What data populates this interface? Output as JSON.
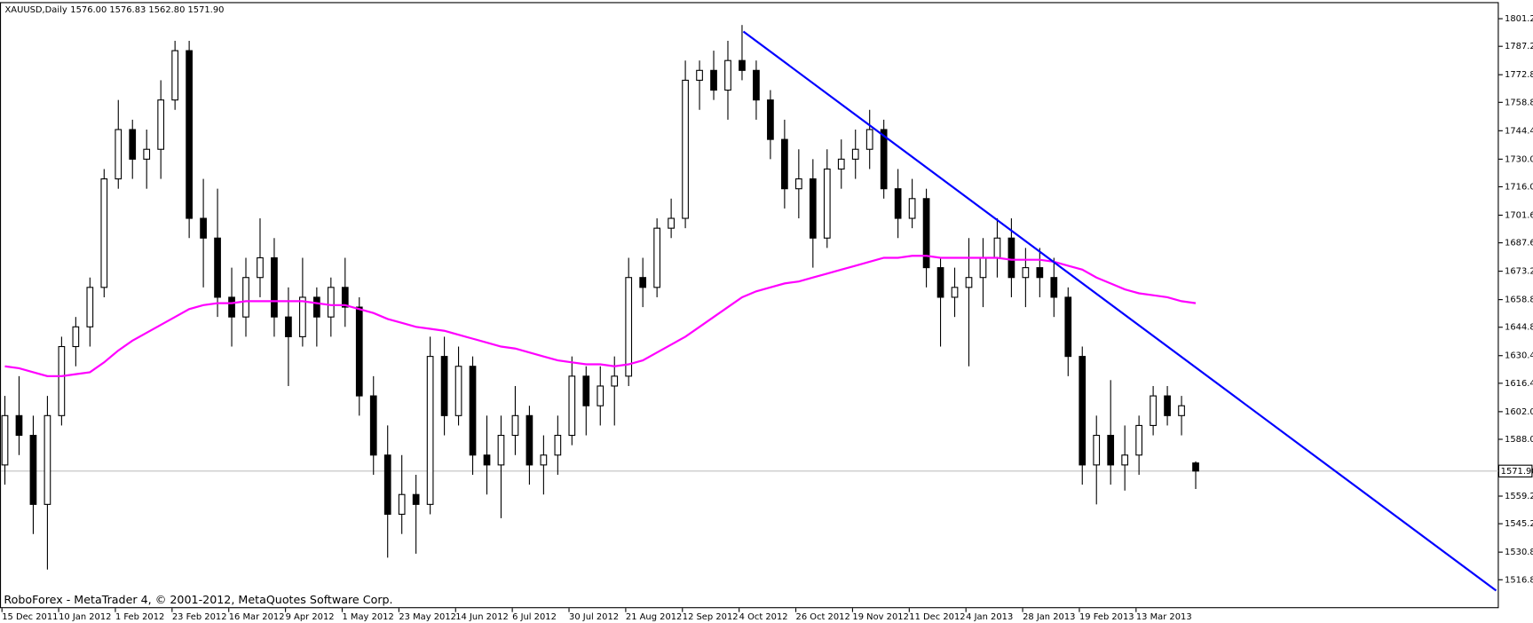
{
  "chart_data": {
    "type": "candlestick",
    "title": "XAUUSD,Daily",
    "ohlc_labels": [
      "1576.00",
      "1576.83",
      "1562.80",
      "1571.90"
    ],
    "footer": "RoboForex - MetaTrader 4, © 2001-2012, MetaQuotes Software Corp.",
    "categories": [
      "15 Dec 2011",
      null,
      null,
      null,
      "10 Jan 2012",
      null,
      null,
      null,
      "1 Feb 2012",
      null,
      null,
      null,
      "23 Feb 2012",
      null,
      null,
      null,
      "16 Mar 2012",
      null,
      null,
      null,
      "9 Apr 2012",
      null,
      null,
      null,
      "1 May 2012",
      null,
      null,
      null,
      "23 May 2012",
      null,
      null,
      null,
      "14 Jun 2012",
      null,
      null,
      null,
      "6 Jul 2012",
      null,
      null,
      null,
      "30 Jul 2012",
      null,
      null,
      null,
      "21 Aug 2012",
      null,
      null,
      null,
      "12 Sep 2012",
      null,
      null,
      null,
      "4 Oct 2012",
      null,
      null,
      null,
      "26 Oct 2012",
      null,
      null,
      null,
      "19 Nov 2012",
      null,
      null,
      null,
      "11 Dec 2012",
      null,
      null,
      null,
      "4 Jan 2013",
      null,
      null,
      null,
      "28 Jan 2013",
      null,
      null,
      null,
      "19 Feb 2013",
      null,
      null,
      null,
      "13 Mar 2013",
      null,
      null,
      null,
      null
    ],
    "open": [
      1575,
      1600,
      1590,
      1555,
      1600,
      1635,
      1645,
      1665,
      1720,
      1745,
      1730,
      1735,
      1760,
      1785,
      1700,
      1690,
      1660,
      1650,
      1670,
      1680,
      1650,
      1640,
      1660,
      1650,
      1665,
      1655,
      1610,
      1580,
      1550,
      1560,
      1555,
      1630,
      1600,
      1625,
      1580,
      1575,
      1590,
      1600,
      1575,
      1580,
      1590,
      1620,
      1605,
      1615,
      1620,
      1670,
      1665,
      1695,
      1700,
      1770,
      1775,
      1765,
      1780,
      1775,
      1760,
      1740,
      1715,
      1720,
      1690,
      1725,
      1730,
      1735,
      1745,
      1715,
      1700,
      1710,
      1675,
      1660,
      1665,
      1670,
      1680,
      1690,
      1670,
      1675,
      1670,
      1660,
      1630,
      1575,
      1590,
      1575,
      1580,
      1595,
      1610,
      1600,
      1576
    ],
    "high": [
      1610,
      1620,
      1600,
      1610,
      1640,
      1650,
      1670,
      1725,
      1760,
      1750,
      1745,
      1770,
      1790,
      1790,
      1720,
      1715,
      1675,
      1680,
      1700,
      1690,
      1665,
      1680,
      1665,
      1670,
      1680,
      1660,
      1620,
      1595,
      1580,
      1570,
      1640,
      1640,
      1635,
      1630,
      1600,
      1600,
      1615,
      1605,
      1590,
      1600,
      1630,
      1625,
      1625,
      1630,
      1680,
      1680,
      1700,
      1710,
      1780,
      1780,
      1785,
      1790,
      1798,
      1780,
      1765,
      1750,
      1735,
      1730,
      1735,
      1740,
      1745,
      1755,
      1750,
      1725,
      1720,
      1715,
      1680,
      1675,
      1690,
      1690,
      1700,
      1700,
      1685,
      1685,
      1680,
      1665,
      1635,
      1600,
      1618,
      1595,
      1600,
      1615,
      1615,
      1610,
      1576.83
    ],
    "low": [
      1565,
      1580,
      1540,
      1522,
      1595,
      1625,
      1635,
      1660,
      1715,
      1720,
      1715,
      1720,
      1755,
      1690,
      1665,
      1650,
      1635,
      1640,
      1660,
      1640,
      1615,
      1635,
      1635,
      1640,
      1645,
      1600,
      1570,
      1528,
      1540,
      1530,
      1550,
      1590,
      1595,
      1570,
      1560,
      1548,
      1580,
      1565,
      1560,
      1570,
      1585,
      1590,
      1595,
      1595,
      1615,
      1655,
      1660,
      1690,
      1695,
      1755,
      1760,
      1750,
      1770,
      1750,
      1730,
      1705,
      1700,
      1675,
      1685,
      1715,
      1720,
      1725,
      1710,
      1690,
      1695,
      1665,
      1635,
      1650,
      1625,
      1655,
      1670,
      1660,
      1655,
      1660,
      1650,
      1620,
      1565,
      1555,
      1565,
      1562,
      1570,
      1590,
      1595,
      1590,
      1562.8
    ],
    "close": [
      1600,
      1590,
      1555,
      1600,
      1635,
      1645,
      1665,
      1720,
      1745,
      1730,
      1735,
      1760,
      1785,
      1700,
      1690,
      1660,
      1650,
      1670,
      1680,
      1650,
      1640,
      1660,
      1650,
      1665,
      1655,
      1610,
      1580,
      1550,
      1560,
      1555,
      1630,
      1600,
      1625,
      1580,
      1575,
      1590,
      1600,
      1575,
      1580,
      1590,
      1620,
      1605,
      1615,
      1620,
      1670,
      1665,
      1695,
      1700,
      1770,
      1775,
      1765,
      1780,
      1775,
      1760,
      1740,
      1715,
      1720,
      1690,
      1725,
      1730,
      1735,
      1745,
      1715,
      1700,
      1710,
      1675,
      1660,
      1665,
      1670,
      1680,
      1690,
      1670,
      1675,
      1670,
      1660,
      1630,
      1575,
      1590,
      1575,
      1580,
      1595,
      1610,
      1600,
      1605,
      1571.9
    ],
    "ma": {
      "color": "#ff00ff",
      "values": [
        1625,
        1624,
        1622,
        1620,
        1620,
        1621,
        1622,
        1627,
        1633,
        1638,
        1642,
        1646,
        1650,
        1654,
        1656,
        1657,
        1657,
        1658,
        1658,
        1658,
        1658,
        1658,
        1657,
        1656,
        1656,
        1654,
        1652,
        1649,
        1647,
        1645,
        1644,
        1643,
        1641,
        1639,
        1637,
        1635,
        1634,
        1632,
        1630,
        1628,
        1627,
        1626,
        1626,
        1625,
        1626,
        1628,
        1632,
        1636,
        1640,
        1645,
        1650,
        1655,
        1660,
        1663,
        1665,
        1667,
        1668,
        1670,
        1672,
        1674,
        1676,
        1678,
        1680,
        1680,
        1681,
        1681,
        1680,
        1680,
        1680,
        1680,
        1680,
        1679,
        1679,
        1679,
        1678,
        1676,
        1674,
        1670,
        1667,
        1664,
        1662,
        1661,
        1660,
        1658,
        1657
      ]
    },
    "trendline": {
      "color": "#0000ff",
      "x": [
        52.3,
        105.4
      ],
      "values": [
        1794.7,
        1511.3
      ]
    },
    "candle_color": "#000000",
    "ylim": [
      1502.4,
      1809.1
    ],
    "yticks": [
      {
        "value": 1801.2,
        "label": "1801.20"
      },
      {
        "value": 1787.2,
        "label": "1787.20"
      },
      {
        "value": 1772.8,
        "label": "1772.80"
      },
      {
        "value": 1758.8,
        "label": "1758.80"
      },
      {
        "value": 1744.4,
        "label": "1744.40"
      },
      {
        "value": 1730,
        "label": "1730.00"
      },
      {
        "value": 1716,
        "label": "1716.00"
      },
      {
        "value": 1701.6,
        "label": "1701.60"
      },
      {
        "value": 1687.6,
        "label": "1687.60"
      },
      {
        "value": 1673.2,
        "label": "1673.20"
      },
      {
        "value": 1658.8,
        "label": "1658.80"
      },
      {
        "value": 1644.8,
        "label": "1644.80"
      },
      {
        "value": 1630.4,
        "label": "1630.40"
      },
      {
        "value": 1616.4,
        "label": "1616.40"
      },
      {
        "value": 1602,
        "label": "1602.00"
      },
      {
        "value": 1588,
        "label": "1588.00"
      },
      {
        "value": 1559.2,
        "label": "1559.20"
      },
      {
        "value": 1545.2,
        "label": "1545.20"
      },
      {
        "value": 1530.8,
        "label": "1530.80"
      },
      {
        "value": 1516.8,
        "label": "1516.80"
      }
    ]
  }
}
